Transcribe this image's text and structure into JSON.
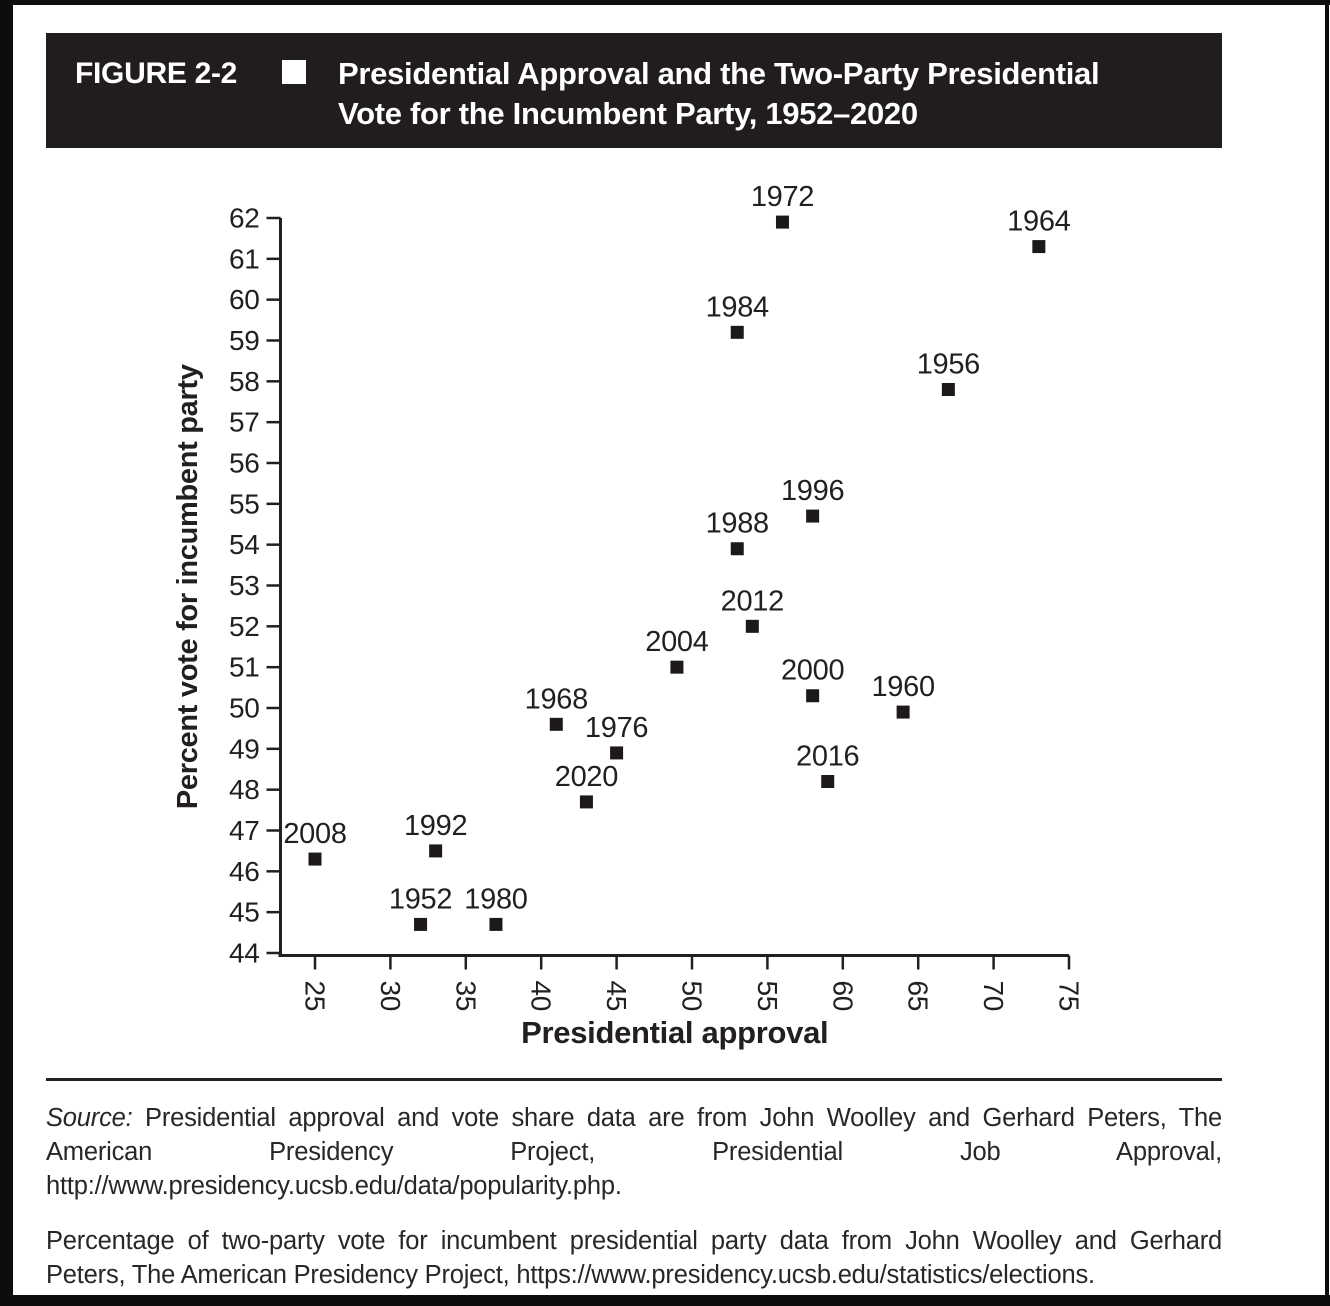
{
  "figure": {
    "label": "FIGURE 2-2",
    "title_line1": "Presidential Approval and the Two-Party Presidential",
    "title_line2": "Vote for the Incumbent Party, 1952–2020"
  },
  "chart_data": {
    "type": "scatter",
    "title": "Presidential Approval and the Two-Party Presidential Vote for the Incumbent Party, 1952-2020",
    "xlabel": "Presidential approval",
    "ylabel": "Percent vote for incumbent party",
    "xlim": [
      22.7,
      75
    ],
    "ylim": [
      44,
      62
    ],
    "x_ticks": [
      25,
      30,
      35,
      40,
      45,
      50,
      55,
      60,
      65,
      70,
      75
    ],
    "y_ticks": [
      44,
      45,
      46,
      47,
      48,
      49,
      50,
      51,
      52,
      53,
      54,
      55,
      56,
      57,
      58,
      59,
      60,
      61,
      62
    ],
    "grid": false,
    "legend": "none",
    "marker": "black-square",
    "points": [
      {
        "year": "1952",
        "approval": 32,
        "vote": 44.7
      },
      {
        "year": "1956",
        "approval": 67,
        "vote": 57.8
      },
      {
        "year": "1960",
        "approval": 64,
        "vote": 49.9
      },
      {
        "year": "1964",
        "approval": 73,
        "vote": 61.3
      },
      {
        "year": "1968",
        "approval": 41,
        "vote": 49.6
      },
      {
        "year": "1972",
        "approval": 56,
        "vote": 61.9
      },
      {
        "year": "1976",
        "approval": 45,
        "vote": 48.9
      },
      {
        "year": "1980",
        "approval": 37,
        "vote": 44.7
      },
      {
        "year": "1984",
        "approval": 53,
        "vote": 59.2
      },
      {
        "year": "1988",
        "approval": 53,
        "vote": 53.9
      },
      {
        "year": "1992",
        "approval": 33,
        "vote": 46.5
      },
      {
        "year": "1996",
        "approval": 58,
        "vote": 54.7
      },
      {
        "year": "2000",
        "approval": 58,
        "vote": 50.3
      },
      {
        "year": "2004",
        "approval": 49,
        "vote": 51.0
      },
      {
        "year": "2008",
        "approval": 25,
        "vote": 46.3
      },
      {
        "year": "2012",
        "approval": 54,
        "vote": 52.0
      },
      {
        "year": "2016",
        "approval": 59,
        "vote": 48.2
      },
      {
        "year": "2020",
        "approval": 43,
        "vote": 47.7
      }
    ]
  },
  "source": {
    "label": "Source:",
    "text1": " Presidential approval and vote share data are from John Woolley and Gerhard Peters, The American Presidency Project, Presidential Job Approval, http://www.presidency.ucsb.edu/data/popularity.php.",
    "text2": "Percentage of two-party vote for incumbent presidential party data from John Woolley and Gerhard Peters, The American Presidency Project, https://www.presidency.ucsb.edu/statistics/elections."
  },
  "colors": {
    "ink": "#231f20",
    "header_bg": "#211d1e",
    "page_bg": "#ffffff",
    "marker": "#1d191a"
  }
}
